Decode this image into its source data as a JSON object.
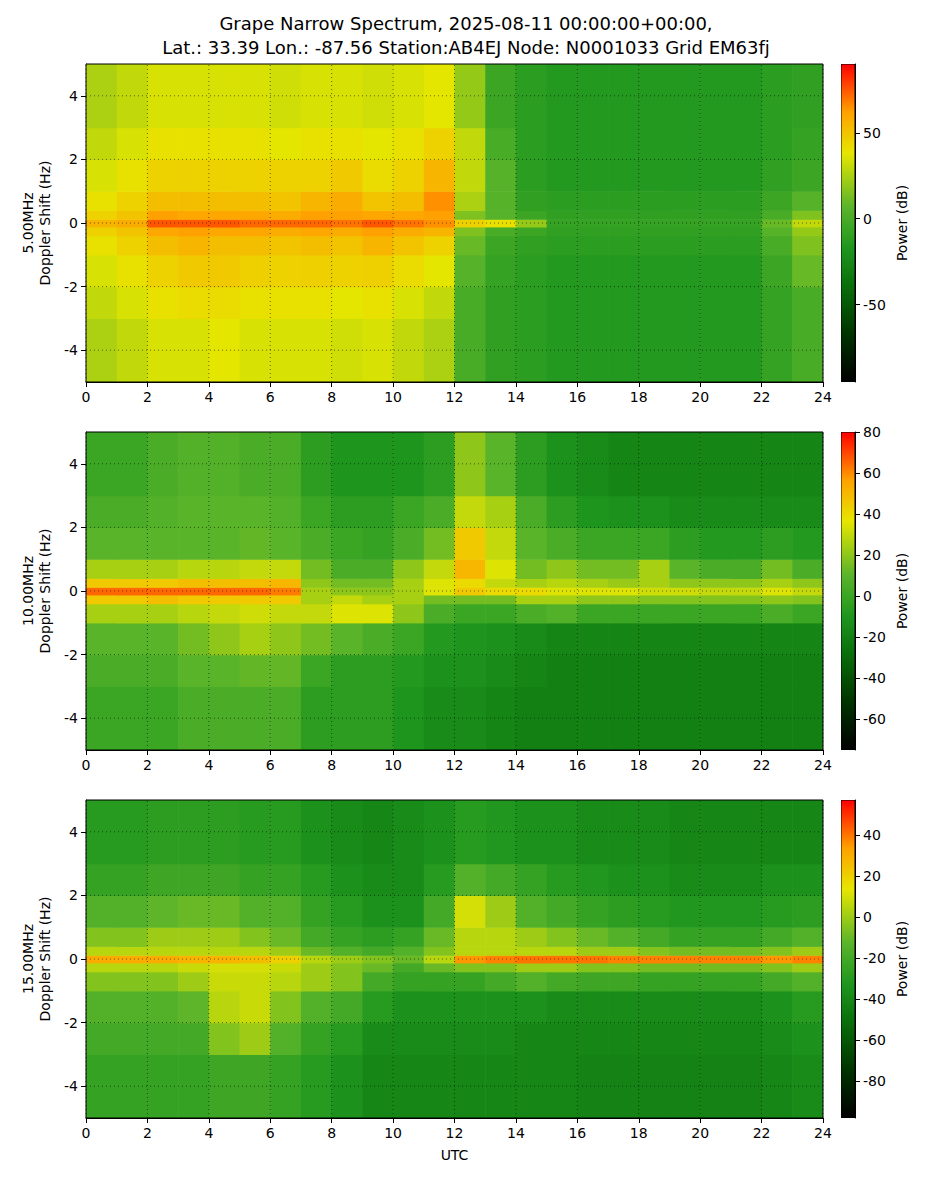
{
  "chart_data": [
    {
      "type": "heatmap",
      "title": "Grape Narrow Spectrum, 2025-08-11 00:00:00+00:00,\nLat.: 33.39 Lon.: -87.56 Station:AB4EJ Node: N0001033 Grid EM63fj",
      "ylabel": "5.00MHz\nDoppler Shift (Hz)",
      "xlim": [
        0,
        24
      ],
      "xticks": [
        0,
        2,
        4,
        6,
        8,
        10,
        12,
        14,
        16,
        18,
        20,
        22,
        24
      ],
      "ylim": [
        -5,
        5
      ],
      "yticks": [
        -4,
        -2,
        0,
        2,
        4
      ],
      "grid": true,
      "x_bins": [
        0,
        1,
        2,
        3,
        4,
        5,
        6,
        7,
        8,
        9,
        10,
        11,
        12,
        13,
        14,
        15,
        16,
        17,
        18,
        19,
        20,
        21,
        22,
        23,
        24
      ],
      "y_bins": [
        -5,
        -3,
        -2,
        -1,
        -0.4,
        -0.12,
        0.12,
        0.4,
        1,
        2,
        3,
        5
      ],
      "power": [
        [
          25,
          30,
          35,
          35,
          38,
          35,
          35,
          35,
          33,
          35,
          30,
          25,
          0,
          -10,
          -12,
          -15,
          -15,
          -15,
          -15,
          -15,
          -15,
          -15,
          -8,
          0
        ],
        [
          30,
          35,
          40,
          42,
          42,
          40,
          40,
          40,
          38,
          40,
          35,
          30,
          0,
          -10,
          -12,
          -15,
          -15,
          -15,
          -15,
          -15,
          -15,
          -15,
          -8,
          0
        ],
        [
          35,
          40,
          45,
          48,
          48,
          46,
          45,
          46,
          45,
          46,
          42,
          38,
          5,
          -8,
          -12,
          -15,
          -15,
          -15,
          -15,
          -15,
          -15,
          -15,
          -5,
          10
        ],
        [
          40,
          45,
          52,
          55,
          52,
          52,
          50,
          52,
          50,
          55,
          50,
          45,
          10,
          -5,
          -10,
          -12,
          -12,
          -12,
          -12,
          -12,
          -12,
          -12,
          0,
          15
        ],
        [
          45,
          50,
          60,
          62,
          60,
          60,
          58,
          60,
          58,
          62,
          58,
          55,
          15,
          0,
          -5,
          -10,
          -10,
          -10,
          -10,
          -10,
          -10,
          -10,
          5,
          20
        ],
        [
          55,
          58,
          75,
          75,
          75,
          72,
          72,
          72,
          70,
          75,
          70,
          65,
          45,
          40,
          20,
          -8,
          -8,
          -8,
          -8,
          -8,
          -8,
          -8,
          10,
          30
        ],
        [
          45,
          50,
          62,
          60,
          60,
          60,
          58,
          62,
          62,
          60,
          60,
          62,
          15,
          5,
          -5,
          -10,
          -10,
          -10,
          -10,
          -10,
          -10,
          -10,
          0,
          15
        ],
        [
          40,
          45,
          52,
          52,
          52,
          52,
          50,
          55,
          58,
          50,
          52,
          65,
          25,
          5,
          -10,
          -12,
          -12,
          -12,
          -12,
          -12,
          -12,
          -12,
          -5,
          5
        ],
        [
          35,
          40,
          45,
          45,
          45,
          45,
          45,
          45,
          48,
          42,
          45,
          55,
          30,
          5,
          -12,
          -15,
          -15,
          -15,
          -15,
          -15,
          -15,
          -15,
          -10,
          -5
        ],
        [
          30,
          35,
          40,
          40,
          40,
          40,
          38,
          40,
          40,
          38,
          40,
          45,
          30,
          0,
          -12,
          -15,
          -15,
          -15,
          -15,
          -15,
          -15,
          -15,
          -12,
          -8
        ],
        [
          25,
          30,
          35,
          35,
          35,
          35,
          33,
          35,
          35,
          33,
          35,
          38,
          20,
          -5,
          -12,
          -15,
          -15,
          -15,
          -15,
          -15,
          -15,
          -15,
          -12,
          -10
        ]
      ],
      "colorbar": {
        "label": "Power (dB)",
        "range": [
          -95,
          90
        ],
        "ticks": [
          -50,
          0,
          50
        ]
      }
    },
    {
      "type": "heatmap",
      "ylabel": "10.00MHz\nDoppler Shift (Hz)",
      "xlim": [
        0,
        24
      ],
      "xticks": [
        0,
        2,
        4,
        6,
        8,
        10,
        12,
        14,
        16,
        18,
        20,
        22,
        24
      ],
      "ylim": [
        -5,
        5
      ],
      "yticks": [
        -4,
        -2,
        0,
        2,
        4
      ],
      "grid": true,
      "x_bins": [
        0,
        1,
        2,
        3,
        4,
        5,
        6,
        7,
        8,
        9,
        10,
        11,
        12,
        13,
        14,
        15,
        16,
        17,
        18,
        19,
        20,
        21,
        22,
        23,
        24
      ],
      "y_bins": [
        -5,
        -3,
        -2,
        -1,
        -0.4,
        -0.12,
        0.12,
        0.4,
        1,
        2,
        3,
        5
      ],
      "power": [
        [
          0,
          0,
          0,
          5,
          5,
          5,
          5,
          -5,
          -5,
          -5,
          -10,
          -15,
          -15,
          -18,
          -20,
          -20,
          -20,
          -20,
          -20,
          -20,
          -20,
          -20,
          -20,
          -20
        ],
        [
          5,
          5,
          5,
          10,
          10,
          12,
          12,
          0,
          -5,
          -5,
          -8,
          -12,
          -12,
          -15,
          -18,
          -20,
          -20,
          -20,
          -20,
          -20,
          -20,
          -20,
          -20,
          -20
        ],
        [
          10,
          10,
          10,
          15,
          20,
          25,
          20,
          15,
          10,
          5,
          0,
          -8,
          -10,
          -12,
          -15,
          -18,
          -18,
          -18,
          -18,
          -18,
          -18,
          -18,
          -18,
          -18
        ],
        [
          25,
          25,
          25,
          28,
          30,
          32,
          30,
          30,
          35,
          35,
          20,
          5,
          0,
          0,
          5,
          8,
          0,
          0,
          0,
          0,
          0,
          0,
          5,
          0
        ],
        [
          45,
          45,
          48,
          45,
          45,
          45,
          45,
          25,
          30,
          25,
          25,
          15,
          15,
          15,
          25,
          25,
          20,
          20,
          18,
          18,
          18,
          18,
          20,
          18
        ],
        [
          65,
          65,
          65,
          65,
          65,
          65,
          62,
          25,
          20,
          20,
          25,
          35,
          45,
          40,
          40,
          35,
          35,
          35,
          32,
          32,
          30,
          30,
          35,
          30
        ],
        [
          45,
          45,
          45,
          48,
          48,
          48,
          50,
          20,
          15,
          15,
          25,
          35,
          40,
          30,
          25,
          28,
          25,
          22,
          25,
          20,
          20,
          20,
          25,
          20
        ],
        [
          25,
          25,
          25,
          28,
          28,
          30,
          30,
          15,
          5,
          5,
          20,
          30,
          50,
          35,
          15,
          20,
          15,
          15,
          25,
          10,
          5,
          5,
          15,
          5
        ],
        [
          10,
          10,
          10,
          10,
          10,
          12,
          10,
          5,
          0,
          -2,
          5,
          15,
          45,
          30,
          10,
          5,
          0,
          0,
          0,
          -5,
          -8,
          -8,
          -5,
          -8
        ],
        [
          5,
          5,
          8,
          10,
          10,
          10,
          8,
          0,
          -5,
          -5,
          0,
          5,
          30,
          25,
          5,
          -5,
          -10,
          -12,
          -12,
          -15,
          -15,
          -15,
          -15,
          -15
        ],
        [
          0,
          0,
          5,
          8,
          8,
          5,
          5,
          -5,
          -10,
          -10,
          -10,
          -5,
          20,
          10,
          -5,
          -12,
          -15,
          -18,
          -18,
          -18,
          -18,
          -18,
          -18,
          -18
        ]
      ],
      "colorbar": {
        "label": "Power (dB)",
        "range": [
          -75,
          80
        ],
        "ticks": [
          -60,
          -40,
          -20,
          0,
          20,
          40,
          60,
          80
        ]
      }
    },
    {
      "type": "heatmap",
      "ylabel": "15.00MHz\nDoppler Shift (Hz)",
      "xlabel": "UTC",
      "xlim": [
        0,
        24
      ],
      "xticks": [
        0,
        2,
        4,
        6,
        8,
        10,
        12,
        14,
        16,
        18,
        20,
        22,
        24
      ],
      "ylim": [
        -5,
        5
      ],
      "yticks": [
        -4,
        -2,
        0,
        2,
        4
      ],
      "grid": true,
      "x_bins": [
        0,
        1,
        2,
        3,
        4,
        5,
        6,
        7,
        8,
        9,
        10,
        11,
        12,
        13,
        14,
        15,
        16,
        17,
        18,
        19,
        20,
        21,
        22,
        23,
        24
      ],
      "y_bins": [
        -5,
        -3,
        -2,
        -1,
        -0.4,
        -0.12,
        0.12,
        0.4,
        1,
        2,
        3,
        5
      ],
      "power": [
        [
          -25,
          -25,
          -25,
          -25,
          -22,
          -22,
          -25,
          -30,
          -35,
          -40,
          -40,
          -40,
          -40,
          -40,
          -40,
          -40,
          -42,
          -42,
          -42,
          -42,
          -42,
          -42,
          -40,
          -38
        ],
        [
          -20,
          -20,
          -20,
          -20,
          -5,
          0,
          -15,
          -25,
          -30,
          -38,
          -38,
          -38,
          -38,
          -38,
          -40,
          -40,
          -40,
          -40,
          -40,
          -40,
          -40,
          -40,
          -38,
          -35
        ],
        [
          -15,
          -15,
          -15,
          -12,
          5,
          8,
          -5,
          -15,
          -20,
          -30,
          -35,
          -35,
          -35,
          -35,
          -35,
          -38,
          -38,
          -38,
          -38,
          -38,
          -38,
          -38,
          -35,
          -30
        ],
        [
          -5,
          -5,
          -5,
          0,
          8,
          8,
          5,
          0,
          -5,
          -20,
          -25,
          -25,
          -25,
          -20,
          -15,
          -20,
          -22,
          -22,
          -25,
          -25,
          -25,
          -25,
          -20,
          -15
        ],
        [
          5,
          5,
          5,
          8,
          10,
          10,
          8,
          0,
          -5,
          -10,
          -20,
          -10,
          -5,
          -5,
          0,
          0,
          -5,
          -5,
          -8,
          -8,
          -8,
          -8,
          -5,
          0
        ],
        [
          30,
          30,
          30,
          28,
          28,
          25,
          20,
          5,
          0,
          -5,
          -10,
          5,
          35,
          38,
          40,
          40,
          40,
          38,
          38,
          38,
          38,
          38,
          35,
          38
        ],
        [
          5,
          5,
          5,
          5,
          5,
          5,
          0,
          -10,
          -15,
          -20,
          -15,
          -5,
          5,
          5,
          5,
          5,
          0,
          0,
          -5,
          -8,
          -8,
          -8,
          -5,
          0
        ],
        [
          -5,
          -5,
          0,
          0,
          0,
          -5,
          -10,
          -20,
          -25,
          -28,
          -25,
          -10,
          5,
          5,
          0,
          -5,
          -10,
          -15,
          -20,
          -25,
          -25,
          -25,
          -20,
          -15
        ],
        [
          -15,
          -15,
          -12,
          -10,
          -10,
          -15,
          -15,
          -25,
          -30,
          -35,
          -35,
          -20,
          10,
          0,
          -15,
          -20,
          -25,
          -28,
          -30,
          -32,
          -32,
          -32,
          -30,
          -28
        ],
        [
          -25,
          -25,
          -22,
          -22,
          -22,
          -25,
          -25,
          -30,
          -35,
          -38,
          -38,
          -30,
          -15,
          -20,
          -25,
          -30,
          -32,
          -35,
          -35,
          -38,
          -38,
          -38,
          -35,
          -35
        ],
        [
          -30,
          -30,
          -28,
          -28,
          -28,
          -30,
          -30,
          -35,
          -38,
          -40,
          -38,
          -35,
          -30,
          -32,
          -35,
          -35,
          -38,
          -38,
          -38,
          -40,
          -40,
          -40,
          -40,
          -40
        ]
      ],
      "colorbar": {
        "label": "Power (dB)",
        "range": [
          -98,
          57
        ],
        "ticks": [
          -80,
          -60,
          -40,
          -20,
          0,
          20,
          40
        ]
      }
    }
  ]
}
